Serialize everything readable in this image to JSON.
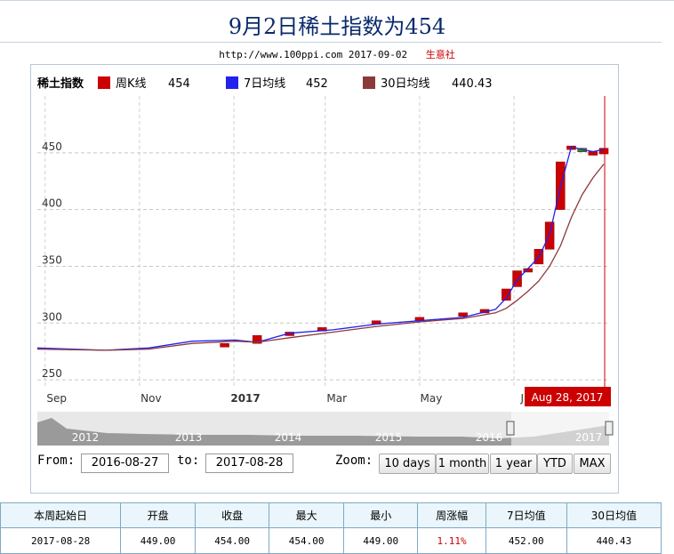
{
  "page": {
    "title": "9月2日稀土指数为454",
    "source_url": "http://www.100ppi.com",
    "source_date": "2017-09-02",
    "source_org": "生意社"
  },
  "legend": {
    "name": "稀土指数",
    "items": [
      {
        "label": "周K线",
        "value": "454",
        "color": "#cc0000"
      },
      {
        "label": "7日均线",
        "value": "452",
        "color": "#2222ee"
      },
      {
        "label": "30日均线",
        "value": "440.43",
        "color": "#8b3a3a"
      }
    ]
  },
  "chart_data": {
    "type": "line",
    "y_ticks": [
      "450",
      "400",
      "350",
      "300",
      "250"
    ],
    "ylim": [
      243,
      500
    ],
    "x_ticks": [
      "Sep",
      "Nov",
      "2017",
      "Mar",
      "May",
      "Ju"
    ],
    "grid": true,
    "tooltip": "Aug 28, 2017",
    "candles": [
      {
        "date": "2016-12-26",
        "open": 282.0,
        "close": 282.0
      },
      {
        "date": "2017-01-16",
        "open": 282.0,
        "close": 289.0
      },
      {
        "date": "2017-02-06",
        "open": 290.0,
        "close": 292.0
      },
      {
        "date": "2017-02-27",
        "open": 294.0,
        "close": 296.0
      },
      {
        "date": "2017-04-03",
        "open": 300.0,
        "close": 302.0
      },
      {
        "date": "2017-05-01",
        "open": 303.0,
        "close": 305.0
      },
      {
        "date": "2017-05-29",
        "open": 306.0,
        "close": 309.0
      },
      {
        "date": "2017-06-12",
        "open": 309.0,
        "close": 312.0
      },
      {
        "date": "2017-06-26",
        "open": 320.0,
        "close": 330.0
      },
      {
        "date": "2017-07-03",
        "open": 332.0,
        "close": 346.0
      },
      {
        "date": "2017-07-10",
        "open": 345.0,
        "close": 348.0
      },
      {
        "date": "2017-07-17",
        "open": 352.0,
        "close": 365.0
      },
      {
        "date": "2017-07-24",
        "open": 365.0,
        "close": 389.0
      },
      {
        "date": "2017-07-31",
        "open": 400.0,
        "close": 442.0
      },
      {
        "date": "2017-08-07",
        "open": 455.0,
        "close": 456.0
      },
      {
        "date": "2017-08-14",
        "open": 454.0,
        "close": 451.0
      },
      {
        "date": "2017-08-21",
        "open": 451.0,
        "close": 451.0
      },
      {
        "date": "2017-08-28",
        "open": 449.0,
        "close": 454.0
      }
    ],
    "series": [
      {
        "name": "7日均线",
        "color": "#2222ee",
        "x": [
          "2016-08-27",
          "2016-10-10",
          "2016-11-07",
          "2016-12-05",
          "2017-01-02",
          "2017-01-16",
          "2017-02-06",
          "2017-03-06",
          "2017-04-03",
          "2017-05-01",
          "2017-05-29",
          "2017-06-19",
          "2017-06-26",
          "2017-07-03",
          "2017-07-10",
          "2017-07-17",
          "2017-07-24",
          "2017-07-31",
          "2017-08-07",
          "2017-08-14",
          "2017-08-21",
          "2017-08-28"
        ],
        "y": [
          278,
          276,
          278,
          284,
          285,
          283,
          291,
          294,
          299,
          302,
          305,
          312,
          322,
          338,
          348,
          358,
          378,
          420,
          455,
          453,
          451,
          453
        ]
      },
      {
        "name": "30日均线",
        "color": "#8b3a3a",
        "x": [
          "2016-08-27",
          "2016-10-10",
          "2016-11-07",
          "2016-12-05",
          "2017-01-02",
          "2017-01-16",
          "2017-02-06",
          "2017-03-06",
          "2017-04-03",
          "2017-05-01",
          "2017-05-29",
          "2017-06-19",
          "2017-06-26",
          "2017-07-03",
          "2017-07-10",
          "2017-07-17",
          "2017-07-24",
          "2017-07-31",
          "2017-08-07",
          "2017-08-14",
          "2017-08-21",
          "2017-08-28"
        ],
        "y": [
          277,
          276,
          277,
          282,
          284,
          283,
          287,
          292,
          297,
          301,
          304,
          309,
          313,
          320,
          328,
          337,
          350,
          368,
          393,
          413,
          428,
          440
        ]
      }
    ]
  },
  "navigator": {
    "labels": [
      "2012",
      "2013",
      "2014",
      "2015",
      "2016",
      "2017"
    ]
  },
  "range_selector": {
    "from_label": "From:",
    "from_value": "2016-08-27",
    "to_label": "to:",
    "to_value": "2017-08-28",
    "zoom_label": "Zoom:",
    "buttons": [
      "10 days",
      "1 month",
      "1 year",
      "YTD",
      "MAX"
    ]
  },
  "table": {
    "headers": [
      "本周起始日",
      "开盘",
      "收盘",
      "最大",
      "最小",
      "周涨幅",
      "7日均值",
      "30日均值"
    ],
    "rows": [
      [
        "2017-08-28",
        "449.00",
        "454.00",
        "454.00",
        "449.00",
        "1.11%",
        "452.00",
        "440.43"
      ]
    ]
  }
}
